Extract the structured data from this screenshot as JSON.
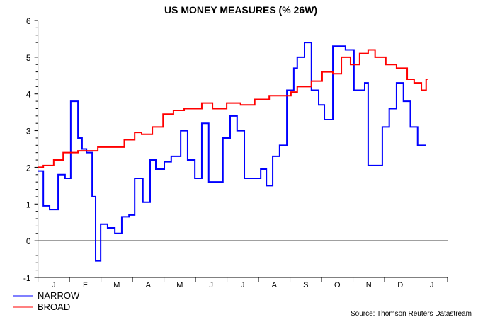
{
  "chart_data": {
    "type": "line",
    "title": "US MONEY MEASURES (% 26W)",
    "xlabel": "",
    "ylabel": "",
    "x_unit": "months elapsed from start of first January",
    "ylim": [
      -1,
      6
    ],
    "yticks": [
      "-1",
      "0",
      "1",
      "2",
      "3",
      "4",
      "5",
      "6"
    ],
    "xlim": [
      0,
      13
    ],
    "xtick_labels": [
      "J",
      "F",
      "M",
      "A",
      "M",
      "J",
      "J",
      "A",
      "S",
      "O",
      "N",
      "D",
      "J"
    ],
    "zero_line": true,
    "grid": false,
    "step": true,
    "legend_position": "bottom-left",
    "source": "Source: Thomson Reuters Datastream",
    "series": [
      {
        "name": "NARROW",
        "color": "#0000ff",
        "x": [
          0,
          0.17,
          0.37,
          0.64,
          0.86,
          1.04,
          1.27,
          1.4,
          1.54,
          1.72,
          1.83,
          1.99,
          2.21,
          2.44,
          2.66,
          2.89,
          3.07,
          3.33,
          3.56,
          3.74,
          4.01,
          4.23,
          4.53,
          4.75,
          4.98,
          5.2,
          5.42,
          5.65,
          5.87,
          6.1,
          6.32,
          6.55,
          7.07,
          7.25,
          7.45,
          7.67,
          7.9,
          8.12,
          8.23,
          8.46,
          8.68,
          8.91,
          9.09,
          9.36,
          9.76,
          10.03,
          10.37,
          10.48,
          10.93,
          11.15,
          11.38,
          11.6,
          11.82,
          12.05,
          12.28
        ],
        "values": [
          1.9,
          0.95,
          0.85,
          1.8,
          1.7,
          3.8,
          2.8,
          2.5,
          2.4,
          1.2,
          -0.55,
          0.45,
          0.35,
          0.2,
          0.65,
          0.7,
          1.7,
          1.05,
          2.2,
          1.95,
          2.15,
          2.3,
          3.0,
          2.2,
          1.7,
          3.2,
          1.6,
          1.6,
          2.8,
          3.4,
          3.0,
          1.7,
          1.95,
          1.5,
          2.3,
          2.6,
          4.1,
          4.7,
          5.0,
          5.4,
          4.1,
          3.7,
          3.3,
          5.3,
          5.2,
          4.1,
          4.3,
          2.05,
          3.1,
          3.6,
          4.3,
          3.8,
          3.1,
          2.6,
          2.6
        ]
      },
      {
        "name": "BROAD",
        "color": "#ff0000",
        "x": [
          0,
          0.17,
          0.5,
          0.8,
          1.27,
          1.9,
          2.74,
          3.07,
          3.29,
          3.63,
          3.97,
          4.3,
          4.64,
          5.2,
          5.54,
          5.99,
          6.43,
          6.88,
          7.34,
          8.03,
          8.23,
          8.68,
          9.02,
          9.36,
          9.63,
          9.92,
          10.21,
          10.48,
          10.7,
          11.04,
          11.38,
          11.72,
          11.94,
          12.17,
          12.32
        ],
        "values": [
          2.0,
          2.05,
          2.2,
          2.4,
          2.45,
          2.55,
          2.75,
          2.95,
          2.9,
          3.1,
          3.45,
          3.55,
          3.6,
          3.75,
          3.6,
          3.75,
          3.7,
          3.85,
          3.95,
          4.05,
          4.2,
          4.35,
          4.6,
          4.55,
          5.0,
          4.8,
          5.1,
          5.2,
          5.0,
          4.8,
          4.7,
          4.4,
          4.3,
          4.1,
          4.4
        ]
      }
    ]
  }
}
